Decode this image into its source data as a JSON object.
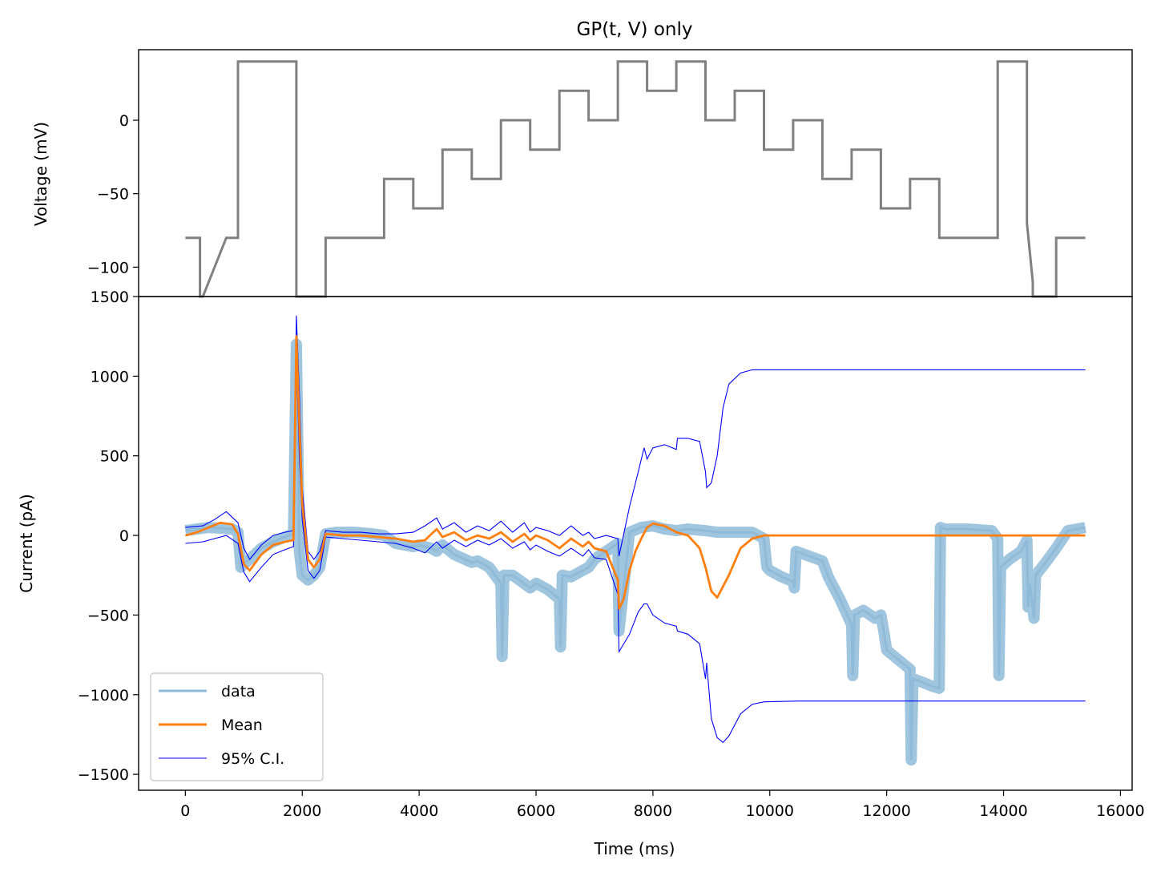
{
  "chart_data": [
    {
      "type": "line",
      "title": "GP(t, V) only",
      "xlabel": "",
      "ylabel": "Voltage (mV)",
      "xlim": [
        -800,
        16200
      ],
      "ylim": [
        -120,
        48
      ],
      "yticks": [
        0,
        -50,
        -100
      ],
      "ytick_labels": [
        "0",
        "−50",
        "−100"
      ],
      "colors": {
        "voltage": "#808080"
      },
      "series": [
        {
          "key": "voltage",
          "x": [
            0,
            250,
            250,
            300,
            700,
            900,
            900,
            1900,
            1900,
            2400,
            2400,
            3400,
            3400,
            3900,
            3900,
            4400,
            4400,
            4900,
            4900,
            5400,
            5400,
            5900,
            5900,
            6400,
            6400,
            6900,
            6900,
            7400,
            7400,
            7900,
            7900,
            8400,
            8400,
            8900,
            8900,
            9400,
            9400,
            9900,
            9900,
            10400,
            10400,
            10900,
            10900,
            11400,
            11400,
            11900,
            11900,
            12400,
            12400,
            12900,
            12900,
            13900,
            13900,
            14400,
            14400,
            14500,
            14500,
            14900,
            14900,
            15400
          ],
          "y": [
            -80,
            -80,
            -120,
            -120,
            -80,
            -80,
            40,
            40,
            -120,
            -120,
            -80,
            -80,
            -40,
            -40,
            -60,
            -60,
            -20,
            -20,
            -40,
            -40,
            0,
            0,
            -20,
            -20,
            20,
            20,
            0,
            0,
            40,
            40,
            20,
            20,
            40,
            40,
            0,
            0,
            20,
            20,
            -20,
            -20,
            0,
            0,
            -40,
            -40,
            -20,
            -20,
            -60,
            -60,
            -40,
            -40,
            -80,
            -80,
            40,
            40,
            -70,
            -110,
            -120,
            -120,
            -80,
            -80
          ]
        }
      ]
    },
    {
      "type": "line",
      "title": "",
      "xlabel": "Time (ms)",
      "ylabel": "Current (pA)",
      "xlim": [
        -800,
        16200
      ],
      "ylim": [
        -1600,
        1500
      ],
      "xticks": [
        0,
        2000,
        4000,
        6000,
        8000,
        10000,
        12000,
        14000,
        16000
      ],
      "xtick_labels": [
        "0",
        "2000",
        "4000",
        "6000",
        "8000",
        "10000",
        "12000",
        "14000",
        "16000"
      ],
      "yticks": [
        1500,
        1000,
        500,
        0,
        -500,
        -1000,
        -1500
      ],
      "ytick_labels": [
        "1500",
        "1000",
        "500",
        "0",
        "−500",
        "−1000",
        "−1500"
      ],
      "legend": {
        "location": "lower-left",
        "entries": [
          {
            "label": "data",
            "color": "#8fbbd9",
            "key": "data"
          },
          {
            "label": "Mean",
            "color": "#ff7f0e",
            "key": "mean"
          },
          {
            "label": "95% C.I.",
            "color": "#0000ff",
            "key": "ci"
          }
        ]
      },
      "series": [
        {
          "key": "data",
          "name": "data",
          "color": "#8fbbd9",
          "x": [
            0,
            200,
            400,
            600,
            800,
            900,
            950,
            1000,
            1100,
            1300,
            1500,
            1700,
            1850,
            1900,
            1950,
            2000,
            2100,
            2200,
            2300,
            2400,
            2600,
            2900,
            3200,
            3400,
            3600,
            3900,
            4000,
            4200,
            4300,
            4400,
            4600,
            4900,
            5000,
            5200,
            5400,
            5420,
            5450,
            5600,
            5900,
            6000,
            6200,
            6400,
            6420,
            6450,
            6600,
            6900,
            7000,
            7200,
            7400,
            7420,
            7600,
            7800,
            8000,
            8200,
            8400,
            8600,
            8900,
            9100,
            9300,
            9500,
            9700,
            9900,
            9950,
            10000,
            10200,
            10400,
            10420,
            10450,
            10600,
            10900,
            11000,
            11200,
            11400,
            11420,
            11450,
            11600,
            11800,
            11900,
            11950,
            12000,
            12200,
            12400,
            12420,
            12450,
            12600,
            12800,
            12900,
            12920,
            13000,
            13400,
            13800,
            13900,
            13920,
            13950,
            14100,
            14300,
            14400,
            14420,
            14450,
            14500,
            14520,
            14550,
            14700,
            14900,
            15100,
            15400
          ],
          "y": [
            30,
            40,
            50,
            45,
            40,
            20,
            -200,
            -180,
            -150,
            -80,
            -40,
            -10,
            10,
            1200,
            -100,
            -250,
            -280,
            -250,
            -200,
            10,
            20,
            20,
            10,
            0,
            -50,
            -70,
            -60,
            -80,
            -100,
            -60,
            -120,
            -170,
            -160,
            -200,
            -300,
            -760,
            -250,
            -250,
            -330,
            -300,
            -340,
            -400,
            -700,
            -250,
            -260,
            -200,
            -150,
            -100,
            -50,
            -600,
            20,
            50,
            60,
            40,
            30,
            40,
            30,
            20,
            20,
            20,
            20,
            -20,
            -200,
            -220,
            -260,
            -290,
            -330,
            -100,
            -120,
            -160,
            -260,
            -400,
            -560,
            -880,
            -500,
            -470,
            -520,
            -500,
            -600,
            -720,
            -780,
            -840,
            -1410,
            -900,
            -920,
            -950,
            -960,
            50,
            40,
            40,
            30,
            -20,
            -880,
            -200,
            -150,
            -100,
            -30,
            -450,
            -300,
            -450,
            -520,
            -250,
            -180,
            -80,
            30,
            50
          ]
        },
        {
          "key": "mean",
          "name": "Mean",
          "color": "#ff7f0e",
          "x": [
            0,
            200,
            400,
            600,
            800,
            900,
            1000,
            1100,
            1300,
            1500,
            1700,
            1850,
            1900,
            1950,
            2000,
            2100,
            2200,
            2300,
            2400,
            2700,
            3000,
            3300,
            3600,
            3900,
            4100,
            4300,
            4400,
            4600,
            4800,
            5000,
            5200,
            5400,
            5600,
            5800,
            5900,
            6000,
            6200,
            6400,
            6600,
            6800,
            6900,
            7000,
            7200,
            7400,
            7420,
            7500,
            7600,
            7700,
            7800,
            7900,
            8000,
            8200,
            8400,
            8600,
            8800,
            8900,
            9000,
            9100,
            9300,
            9500,
            9700,
            9900,
            10200,
            11000,
            12000,
            13000,
            14000,
            15000,
            15400
          ],
          "y": [
            0,
            20,
            50,
            80,
            70,
            10,
            -180,
            -220,
            -120,
            -60,
            -40,
            -30,
            1250,
            700,
            200,
            -150,
            -200,
            -150,
            10,
            0,
            0,
            -10,
            -20,
            -40,
            -30,
            40,
            -10,
            20,
            -30,
            0,
            -20,
            20,
            -40,
            10,
            -30,
            0,
            -30,
            -80,
            -20,
            -70,
            -40,
            -80,
            -100,
            -280,
            -460,
            -400,
            -220,
            -100,
            -20,
            50,
            75,
            60,
            20,
            0,
            -80,
            -200,
            -350,
            -390,
            -250,
            -80,
            -20,
            0,
            0,
            0,
            0,
            0,
            0,
            0,
            0
          ]
        },
        {
          "key": "ci_upper",
          "name": "95% C.I.",
          "color": "#0000ff",
          "x": [
            0,
            300,
            500,
            700,
            900,
            1000,
            1100,
            1300,
            1500,
            1700,
            1850,
            1900,
            1950,
            2000,
            2100,
            2200,
            2300,
            2400,
            2700,
            3000,
            3300,
            3600,
            3900,
            4100,
            4300,
            4400,
            4600,
            4800,
            5000,
            5200,
            5400,
            5600,
            5800,
            5900,
            6000,
            6200,
            6400,
            6600,
            6800,
            6900,
            7000,
            7200,
            7400,
            7420,
            7600,
            7750,
            7850,
            7900,
            8000,
            8200,
            8400,
            8420,
            8600,
            8800,
            8900,
            8920,
            9000,
            9100,
            9200,
            9300,
            9500,
            9700,
            9900,
            10500,
            12000,
            14000,
            15400
          ],
          "y": [
            50,
            60,
            100,
            150,
            80,
            -80,
            -150,
            -60,
            0,
            20,
            30,
            1380,
            900,
            300,
            -100,
            -150,
            -100,
            30,
            20,
            20,
            10,
            10,
            20,
            60,
            110,
            40,
            80,
            20,
            60,
            30,
            90,
            20,
            80,
            20,
            50,
            30,
            0,
            60,
            0,
            20,
            -20,
            0,
            -20,
            -130,
            180,
            400,
            550,
            480,
            550,
            570,
            540,
            610,
            610,
            590,
            400,
            300,
            330,
            500,
            800,
            950,
            1020,
            1040,
            1040,
            1040,
            1040,
            1040,
            1040
          ]
        },
        {
          "key": "ci_lower",
          "name": "95% C.I.",
          "color": "#0000ff",
          "x": [
            0,
            300,
            500,
            700,
            900,
            1000,
            1100,
            1300,
            1500,
            1700,
            1850,
            1900,
            1950,
            2000,
            2100,
            2200,
            2300,
            2400,
            2700,
            3000,
            3300,
            3600,
            3900,
            4100,
            4300,
            4400,
            4600,
            4800,
            5000,
            5200,
            5400,
            5600,
            5800,
            5900,
            6000,
            6200,
            6400,
            6600,
            6800,
            6900,
            7000,
            7200,
            7400,
            7420,
            7600,
            7750,
            7850,
            7900,
            8000,
            8200,
            8400,
            8420,
            8600,
            8800,
            8900,
            8920,
            9000,
            9100,
            9200,
            9300,
            9500,
            9700,
            9900,
            10500,
            12000,
            14000,
            15400
          ],
          "y": [
            -50,
            -40,
            -20,
            0,
            -50,
            -230,
            -290,
            -200,
            -120,
            -90,
            -70,
            1120,
            500,
            100,
            -220,
            -270,
            -220,
            -10,
            -20,
            -30,
            -40,
            -50,
            -80,
            -110,
            -40,
            -80,
            -30,
            -70,
            -30,
            -60,
            -20,
            -80,
            -40,
            -90,
            -60,
            -100,
            -130,
            -80,
            -130,
            -90,
            -140,
            -150,
            -370,
            -730,
            -620,
            -480,
            -430,
            -430,
            -500,
            -550,
            -570,
            -600,
            -620,
            -680,
            -900,
            -800,
            -1150,
            -1270,
            -1300,
            -1260,
            -1120,
            -1060,
            -1045,
            -1040,
            -1040,
            -1040,
            -1040
          ]
        }
      ]
    }
  ]
}
